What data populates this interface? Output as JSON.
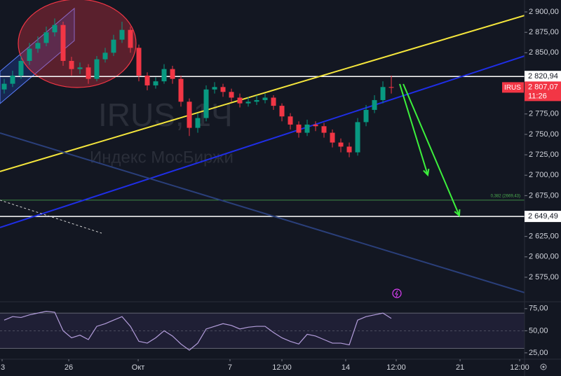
{
  "watermark": {
    "symbol": "IRUS, 1Ч",
    "name": "Индекс МосБиржи"
  },
  "chart_data": [
    {
      "type": "candlestick",
      "up_color": "#089981",
      "down_color": "#f23645",
      "open": [
        2805,
        2812,
        2822,
        2840,
        2855,
        2862,
        2875,
        2884,
        2840,
        2830,
        2832,
        2818,
        2842,
        2850,
        2866,
        2878,
        2856,
        2822,
        2810,
        2815,
        2830,
        2818,
        2790,
        2758,
        2770,
        2805,
        2808,
        2802,
        2795,
        2788,
        2790,
        2792,
        2795,
        2785,
        2772,
        2762,
        2752,
        2762,
        2760,
        2752,
        2740,
        2735,
        2728,
        2765,
        2780,
        2792,
        2808
      ],
      "high": [
        2818,
        2828,
        2846,
        2862,
        2870,
        2882,
        2892,
        2888,
        2845,
        2838,
        2836,
        2846,
        2856,
        2872,
        2888,
        2882,
        2860,
        2826,
        2820,
        2836,
        2834,
        2822,
        2794,
        2776,
        2810,
        2814,
        2812,
        2806,
        2800,
        2796,
        2798,
        2800,
        2798,
        2788,
        2776,
        2766,
        2768,
        2766,
        2764,
        2756,
        2745,
        2740,
        2770,
        2786,
        2798,
        2815,
        2822
      ],
      "low": [
        2800,
        2808,
        2818,
        2835,
        2850,
        2858,
        2870,
        2834,
        2822,
        2824,
        2812,
        2815,
        2838,
        2846,
        2862,
        2850,
        2815,
        2804,
        2806,
        2812,
        2812,
        2784,
        2748,
        2752,
        2766,
        2800,
        2796,
        2790,
        2783,
        2784,
        2786,
        2788,
        2780,
        2766,
        2756,
        2746,
        2748,
        2754,
        2746,
        2734,
        2728,
        2722,
        2724,
        2760,
        2776,
        2788,
        2800
      ],
      "close": [
        2812,
        2822,
        2840,
        2855,
        2862,
        2875,
        2884,
        2840,
        2830,
        2832,
        2818,
        2842,
        2850,
        2866,
        2878,
        2856,
        2822,
        2810,
        2815,
        2830,
        2818,
        2790,
        2758,
        2770,
        2805,
        2808,
        2802,
        2795,
        2788,
        2790,
        2792,
        2795,
        2785,
        2772,
        2762,
        2752,
        2762,
        2760,
        2752,
        2740,
        2735,
        2728,
        2765,
        2780,
        2792,
        2808,
        2807.07
      ],
      "xlim": [
        -0.5,
        61.83
      ],
      "xticks": [
        {
          "value": -0.25,
          "label": "3"
        },
        {
          "value": 7.67,
          "label": "26"
        },
        {
          "value": 15.92,
          "label": "Окт"
        },
        {
          "value": 26.83,
          "label": "7"
        },
        {
          "value": 33,
          "label": "12:00"
        },
        {
          "value": 40.58,
          "label": "14"
        },
        {
          "value": 46.58,
          "label": "12:00"
        },
        {
          "value": 54.17,
          "label": "21"
        },
        {
          "value": 61.25,
          "label": "12:00"
        }
      ],
      "ylim": [
        2545.8,
        2914.6
      ],
      "yticks": [
        {
          "value": 2900,
          "label": "2 900,00"
        },
        {
          "value": 2875,
          "label": "2 875,00"
        },
        {
          "value": 2850,
          "label": "2 850,00"
        },
        {
          "value": 2775,
          "label": "2 775,00"
        },
        {
          "value": 2750,
          "label": "2 750,00"
        },
        {
          "value": 2725,
          "label": "2 725,00"
        },
        {
          "value": 2700,
          "label": "2 700,00"
        },
        {
          "value": 2675,
          "label": "2 675,00"
        },
        {
          "value": 2625,
          "label": "2 625,00"
        },
        {
          "value": 2600,
          "label": "2 600,00"
        },
        {
          "value": 2575,
          "label": "2 575,00"
        }
      ],
      "price_lines": [
        {
          "value": 2820.94,
          "label": "2 820,94"
        },
        {
          "value": 2649.49,
          "label": "2 649,49"
        }
      ],
      "fib_level": {
        "value": 2669.43,
        "label": "0,382 (2669,43)",
        "color": "#4caf50"
      },
      "last_price": {
        "value": 2807.07,
        "label": "2 807,07",
        "countdown": "11:26",
        "symbol": "IRUS",
        "color": "#f23645"
      },
      "trendlines": [
        {
          "color": "#f5e63c",
          "x": [
            -0.5,
            61.83
          ],
          "y": [
            2704.5,
            2895.7
          ]
        },
        {
          "color": "#1f2ee6",
          "x": [
            -0.5,
            61.83
          ],
          "y": [
            2635.9,
            2846
          ]
        },
        {
          "color": "#2a3f7a",
          "x": [
            -0.5,
            61.83
          ],
          "y": [
            2751.7,
            2556.2
          ]
        },
        {
          "color": "#d0d0d0",
          "x": [
            -0.5,
            11.58
          ],
          "y": [
            2669.4,
            2629
          ],
          "style": "dashed"
        }
      ],
      "arrows": [
        {
          "color": "#3cf03c",
          "x": [
            47,
            50.33
          ],
          "y": [
            2811.7,
            2700.2
          ]
        },
        {
          "color": "#3cf03c",
          "x": [
            47.42,
            54.08
          ],
          "y": [
            2811.7,
            2650.5
          ]
        }
      ]
    },
    {
      "type": "line",
      "color": "#b39ddb",
      "values": [
        62,
        66,
        65,
        68,
        70,
        72,
        71,
        50,
        42,
        45,
        40,
        55,
        58,
        62,
        66,
        55,
        38,
        36,
        42,
        50,
        44,
        35,
        28,
        36,
        52,
        55,
        58,
        56,
        52,
        54,
        55,
        55,
        48,
        42,
        38,
        35,
        46,
        44,
        40,
        36,
        36,
        34,
        62,
        66,
        68,
        70,
        64
      ],
      "band": [
        30,
        70
      ],
      "ylim": [
        18.6,
        82
      ],
      "yticks": [
        {
          "value": 75,
          "label": "75,00"
        },
        {
          "value": 50,
          "label": "50,00"
        },
        {
          "value": 25,
          "label": "25,00"
        }
      ]
    }
  ]
}
